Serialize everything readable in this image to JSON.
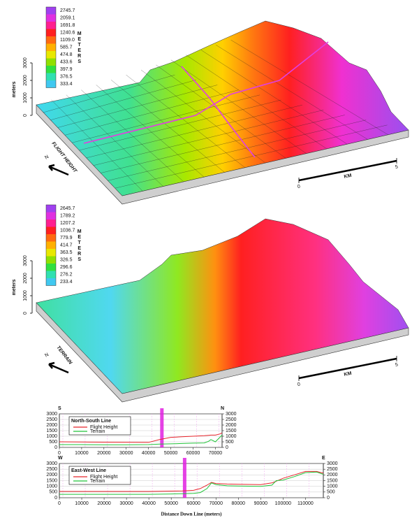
{
  "chart_data": [
    {
      "type": "surface",
      "title": "FLIGHT HEIGHT",
      "ylabel": "meters",
      "yticks": [
        0,
        1000,
        2000,
        3000
      ],
      "north": "N",
      "colorbar": {
        "title": "METERS",
        "ticks": [
          2745.7,
          2059.1,
          1691.8,
          1240.6,
          {
            "value": 1109,
            "label": "1109.0"
          },
          585.7,
          474.8,
          433.6,
          397.9,
          376.5,
          333.4
        ],
        "colors": [
          "#a040f0",
          "#e030e0",
          "#ff2090",
          "#ff2020",
          "#ff6a10",
          "#ffb000",
          "#e8e800",
          "#90e000",
          "#30e040",
          "#30e0b0",
          "#40c8f0"
        ]
      },
      "scalebar": {
        "ticks": [
          0,
          5
        ],
        "label": "KM"
      }
    },
    {
      "type": "surface",
      "title": "TERRAIN",
      "ylabel": "meters",
      "yticks": [
        0,
        1000,
        2000,
        3000
      ],
      "north": "N",
      "colorbar": {
        "title": "METERS",
        "ticks": [
          2645.7,
          1789.2,
          1207.2,
          1036.7,
          779.9,
          414.7,
          363.5,
          326.5,
          296.6,
          276.2,
          233.4
        ],
        "colors": [
          "#a040f0",
          "#e030e0",
          "#ff2090",
          "#ff2020",
          "#ff6a10",
          "#ffb000",
          "#e8e800",
          "#90e000",
          "#30e040",
          "#30e0b0",
          "#40c8f0"
        ]
      },
      "scalebar": {
        "ticks": [
          0,
          5
        ],
        "label": "KM"
      }
    },
    {
      "type": "line",
      "title": "North-South Line",
      "start_label": "S",
      "end_label": "N",
      "marker_x": 46000,
      "marker_color": "#e020e0",
      "x": [
        0,
        10000,
        20000,
        30000,
        40000,
        45000,
        50000,
        55000,
        60000,
        65000,
        67000,
        68000,
        70000,
        72000,
        73000
      ],
      "series": [
        {
          "name": "Flight Height",
          "color": "#e8242b",
          "values": [
            500,
            480,
            470,
            460,
            450,
            700,
            900,
            950,
            1000,
            1050,
            1080,
            1100,
            1100,
            1200,
            1300
          ]
        },
        {
          "name": "Terrain",
          "color": "#22c43a",
          "values": [
            250,
            250,
            240,
            240,
            250,
            300,
            320,
            350,
            380,
            400,
            550,
            700,
            500,
            900,
            1100
          ]
        }
      ],
      "xlim": [
        0,
        73000
      ],
      "xticks": [
        0,
        10000,
        20000,
        30000,
        40000,
        50000,
        60000,
        70000
      ],
      "ylim": [
        0,
        3000
      ],
      "yticks": [
        0,
        500,
        1000,
        1500,
        2000,
        2500,
        3000
      ],
      "y2lim": [
        0,
        3000
      ],
      "y2ticks": [
        0,
        500,
        1000,
        1500,
        2000,
        2500,
        3000
      ]
    },
    {
      "type": "line",
      "title": "East-West Line",
      "start_label": "W",
      "end_label": "E",
      "xlabel": "Distance Down Line (meters)",
      "marker_x": 56000,
      "marker_color": "#e020e0",
      "x": [
        0,
        10000,
        20000,
        30000,
        40000,
        50000,
        55000,
        60000,
        63000,
        66000,
        68000,
        70000,
        75000,
        80000,
        90000,
        95000,
        97000,
        100000,
        105000,
        110000,
        115000,
        118000
      ],
      "series": [
        {
          "name": "Flight Height",
          "color": "#e8242b",
          "values": [
            550,
            550,
            550,
            550,
            550,
            580,
            600,
            650,
            800,
            1100,
            1350,
            1250,
            1200,
            1180,
            1150,
            1300,
            1450,
            1700,
            2000,
            2300,
            2300,
            2150
          ]
        },
        {
          "name": "Terrain",
          "color": "#22c43a",
          "values": [
            300,
            300,
            300,
            300,
            300,
            330,
            350,
            380,
            450,
            800,
            1300,
            1150,
            1050,
            1020,
            1000,
            1100,
            1500,
            1550,
            1850,
            2200,
            2250,
            2050
          ]
        }
      ],
      "xlim": [
        0,
        118000
      ],
      "xticks": [
        0,
        10000,
        20000,
        30000,
        40000,
        50000,
        60000,
        70000,
        80000,
        90000,
        100000,
        110000
      ],
      "ylim": [
        0,
        3000
      ],
      "yticks": [
        0,
        500,
        1000,
        1500,
        2000,
        2500,
        3000
      ],
      "y2lim": [
        0,
        3000
      ],
      "y2ticks": [
        0,
        500,
        1000,
        1500,
        2000,
        2500,
        3000
      ]
    }
  ]
}
